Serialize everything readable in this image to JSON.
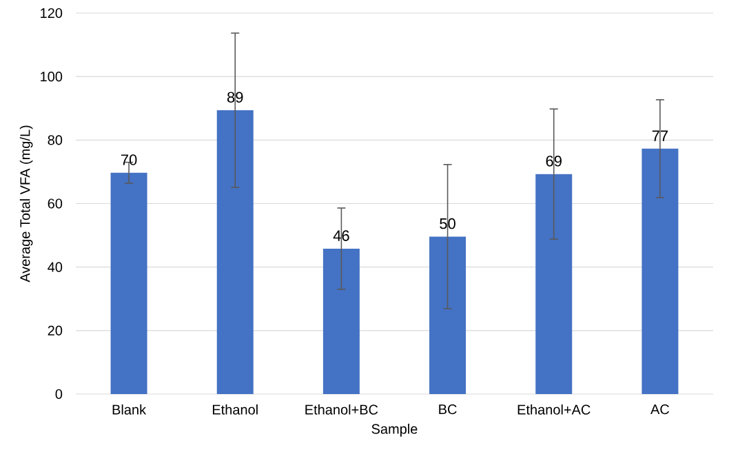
{
  "chart_data": {
    "type": "bar",
    "xlabel": "Sample",
    "ylabel": "Average Total VFA (mg/L)",
    "categories": [
      "Blank",
      "Ethanol",
      "Ethanol+BC",
      "BC",
      "Ethanol+AC",
      "AC"
    ],
    "values": [
      69.7,
      89.4,
      45.8,
      49.6,
      69.3,
      77.3
    ],
    "errors": [
      3.3,
      24.3,
      12.8,
      22.7,
      20.5,
      15.4
    ],
    "value_labels": [
      "70",
      "89",
      "46",
      "50",
      "69",
      "77"
    ],
    "color": "#4472c4",
    "ylim": [
      0,
      120
    ],
    "yticks": [
      0,
      20,
      40,
      60,
      80,
      100,
      120
    ],
    "grid": "y"
  }
}
